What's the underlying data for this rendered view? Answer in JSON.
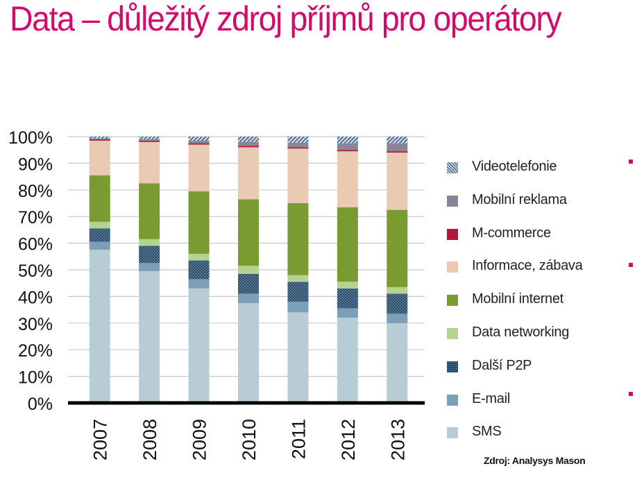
{
  "title": "Data – důležitý zdroj příjmů pro operátory",
  "source": "Zdroj: Analysys Mason",
  "accent_color": "#d20a6b",
  "chart_data": {
    "type": "bar",
    "stacked": true,
    "categories": [
      "2007",
      "2008",
      "2009",
      "2010",
      "2011",
      "2012",
      "2013"
    ],
    "yticks": [
      "0%",
      "10%",
      "20%",
      "30%",
      "40%",
      "50%",
      "60%",
      "70%",
      "80%",
      "90%",
      "100%"
    ],
    "ylim": [
      0,
      100
    ],
    "grid": true,
    "legend_position": "right",
    "series": [
      {
        "name": "SMS",
        "color": "#b8ccd6",
        "pattern": "solid",
        "values": [
          57.5,
          49.5,
          43,
          37.5,
          34,
          32,
          30
        ]
      },
      {
        "name": "E-mail",
        "color": "#7b9fb6",
        "pattern": "solid",
        "values": [
          3,
          3,
          3.5,
          3.5,
          4,
          3.5,
          3.5
        ]
      },
      {
        "name": "Další P2P",
        "color": "#294c6c",
        "pattern": "dots",
        "values": [
          5,
          6.5,
          7,
          7.5,
          7.5,
          7.5,
          7.5
        ]
      },
      {
        "name": "Data networking",
        "color": "#b5d38e",
        "pattern": "solid",
        "values": [
          2.5,
          2.5,
          2.5,
          3,
          2.5,
          2.5,
          2.5
        ]
      },
      {
        "name": "Mobilní internet",
        "color": "#7a9a32",
        "pattern": "solid",
        "values": [
          17.5,
          21,
          23.5,
          25,
          27,
          28,
          29
        ]
      },
      {
        "name": "Informace, zábava",
        "color": "#ebcab3",
        "pattern": "solid",
        "values": [
          13,
          15.5,
          17.5,
          19.5,
          20.5,
          21,
          21.5
        ]
      },
      {
        "name": "M-commerce",
        "color": "#b01838",
        "pattern": "solid",
        "values": [
          0.5,
          0.5,
          0.5,
          0.5,
          0.5,
          0.5,
          0.5
        ]
      },
      {
        "name": "Mobilní reklama",
        "color": "#8a8499",
        "pattern": "solid",
        "values": [
          0.3,
          0.5,
          1,
          1.5,
          1.7,
          2.5,
          3
        ]
      },
      {
        "name": "Videotelefonie",
        "color": "#5f7a96",
        "pattern": "hatch",
        "values": [
          0.7,
          1,
          1.5,
          2,
          2.3,
          2.5,
          2.5
        ]
      }
    ]
  }
}
